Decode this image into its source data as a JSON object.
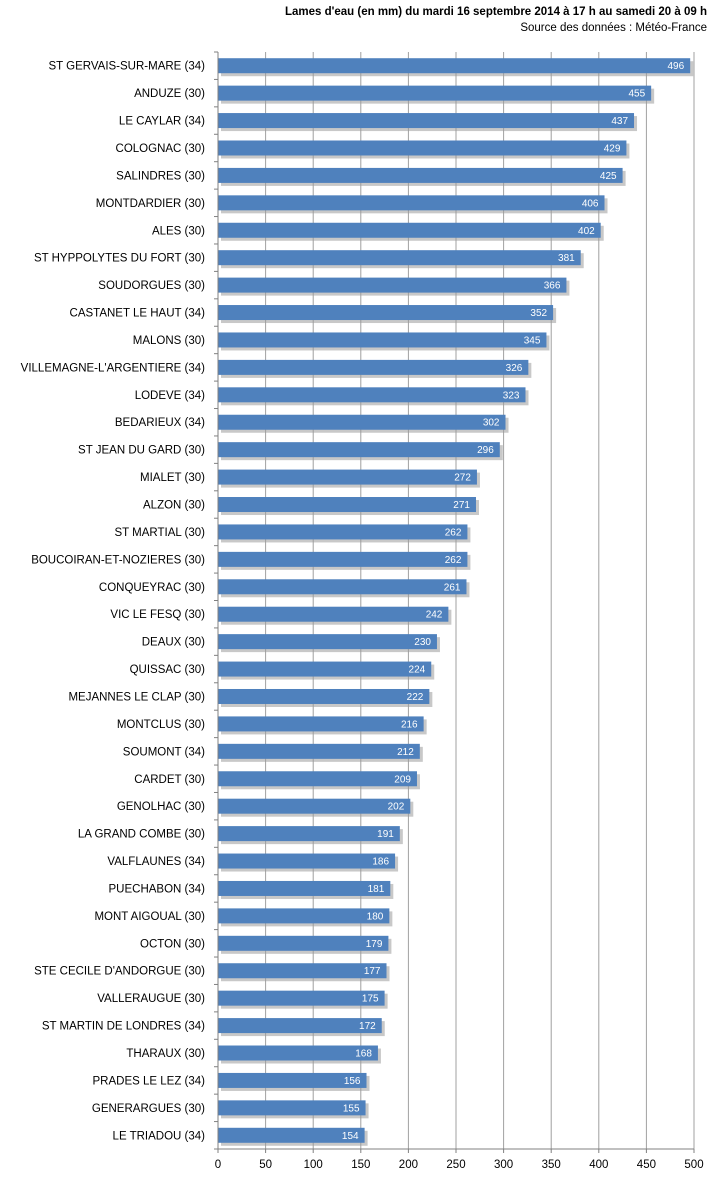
{
  "chart_data": {
    "type": "bar",
    "orientation": "horizontal",
    "title": "Lames d'eau (en mm) du mardi 16 septembre 2014 à 17 h au samedi 20 à 09 h",
    "subtitle": "Source des données : Météo-France",
    "xlim": [
      0,
      500
    ],
    "xticks": [
      "0",
      "50",
      "100",
      "150",
      "200",
      "250",
      "300",
      "350",
      "400",
      "450",
      "500"
    ],
    "grid": true,
    "bar_color": "#4f81bd",
    "categories": [
      "ST GERVAIS-SUR-MARE (34)",
      "ANDUZE (30)",
      "LE CAYLAR (34)",
      "COLOGNAC (30)",
      "SALINDRES (30)",
      "MONTDARDIER (30)",
      "ALES (30)",
      "ST HYPPOLYTES DU FORT (30)",
      "SOUDORGUES (30)",
      "CASTANET LE HAUT (34)",
      "MALONS (30)",
      "VILLEMAGNE-L'ARGENTIERE (34)",
      "LODEVE (34)",
      "BEDARIEUX (34)",
      "ST JEAN DU GARD (30)",
      "MIALET (30)",
      "ALZON (30)",
      "ST MARTIAL (30)",
      "BOUCOIRAN-ET-NOZIERES (30)",
      "CONQUEYRAC (30)",
      "VIC LE FESQ (30)",
      "DEAUX (30)",
      "QUISSAC (30)",
      "MEJANNES LE CLAP (30)",
      "MONTCLUS (30)",
      "SOUMONT (34)",
      "CARDET (30)",
      "GENOLHAC (30)",
      "LA GRAND COMBE (30)",
      "VALFLAUNES (34)",
      "PUECHABON (34)",
      "MONT AIGOUAL (30)",
      "OCTON (30)",
      "STE CECILE D'ANDORGUE (30)",
      "VALLERAUGUE (30)",
      "ST MARTIN DE LONDRES (34)",
      "THARAUX (30)",
      "PRADES LE LEZ  (34)",
      "GENERARGUES (30)",
      "LE TRIADOU (34)"
    ],
    "values": [
      496,
      455,
      437,
      429,
      425,
      406,
      402,
      381,
      366,
      352,
      345,
      326,
      323,
      302,
      296,
      272,
      271,
      262,
      262,
      261,
      242,
      230,
      224,
      222,
      216,
      212,
      209,
      202,
      191,
      186,
      181,
      180,
      179,
      177,
      175,
      172,
      168,
      156,
      155,
      154
    ]
  }
}
